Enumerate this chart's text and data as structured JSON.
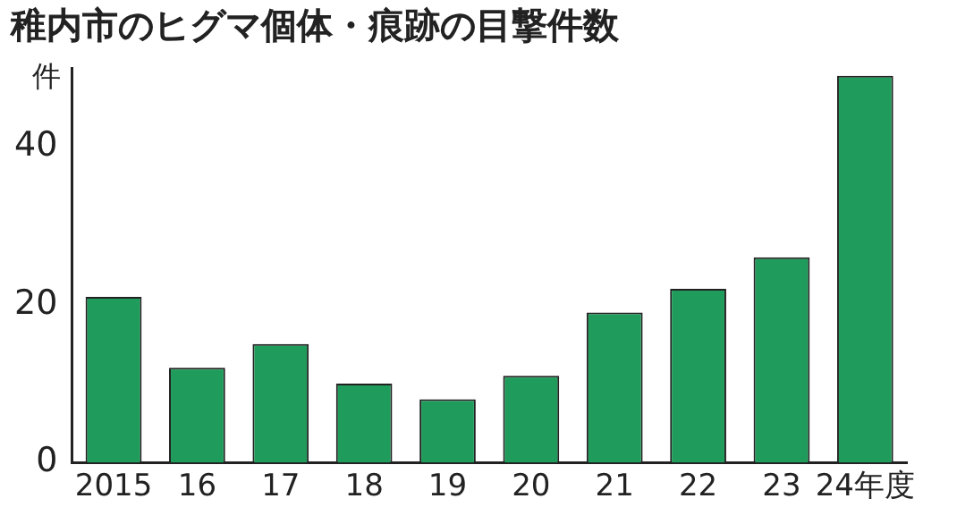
{
  "chart_data": {
    "type": "bar",
    "title": "稚内市のヒグマ個体・痕跡の目撃件数",
    "ylabel": "件",
    "categories": [
      "2015",
      "16",
      "17",
      "18",
      "19",
      "20",
      "21",
      "22",
      "23",
      "24年度"
    ],
    "values": [
      21,
      12,
      15,
      10,
      8,
      11,
      19,
      22,
      26,
      49
    ],
    "color": "#1f9c5b",
    "ylim": [
      0,
      50
    ],
    "yticks": [
      0,
      20,
      40
    ],
    "grid": false,
    "legend": false
  }
}
